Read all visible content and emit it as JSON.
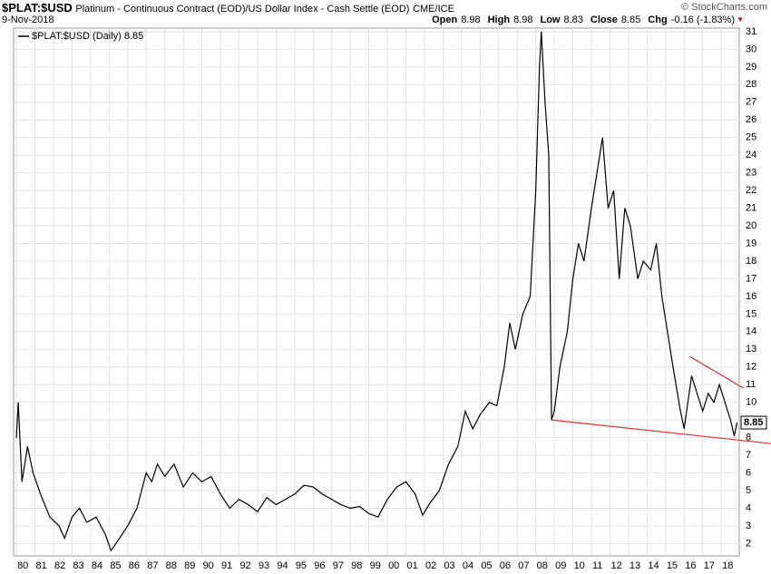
{
  "chart_data": {
    "type": "line",
    "title": "$PLAT:$USD",
    "subtitle": "Platinum - Continuous Contract (EOD)/US Dollar Index - Cash Settle (EOD)",
    "exchange": "CME/ICE",
    "date": "9-Nov-2018",
    "source": "© StockCharts.com",
    "quote": [
      {
        "label": "Open",
        "value": 8.98
      },
      {
        "label": "High",
        "value": 8.98
      },
      {
        "label": "Low",
        "value": 8.83
      },
      {
        "label": "Close",
        "value": 8.85
      },
      {
        "label": "Chg",
        "value": "-0.16 (-1.83%)"
      }
    ],
    "xlim": [
      1979.85,
      2018.97
    ],
    "ylim": [
      1.3,
      31.1
    ],
    "grid": true,
    "xticks": [
      {
        "value": 1980,
        "label": "80"
      },
      {
        "value": 1981,
        "label": "81"
      },
      {
        "value": 1982,
        "label": "82"
      },
      {
        "value": 1983,
        "label": "83"
      },
      {
        "value": 1984,
        "label": "84"
      },
      {
        "value": 1985,
        "label": "85"
      },
      {
        "value": 1986,
        "label": "86"
      },
      {
        "value": 1987,
        "label": "87"
      },
      {
        "value": 1988,
        "label": "88"
      },
      {
        "value": 1989,
        "label": "89"
      },
      {
        "value": 1990,
        "label": "90"
      },
      {
        "value": 1991,
        "label": "91"
      },
      {
        "value": 1992,
        "label": "92"
      },
      {
        "value": 1993,
        "label": "93"
      },
      {
        "value": 1994,
        "label": "94"
      },
      {
        "value": 1995,
        "label": "95"
      },
      {
        "value": 1996,
        "label": "96"
      },
      {
        "value": 1997,
        "label": "97"
      },
      {
        "value": 1998,
        "label": "98"
      },
      {
        "value": 1999,
        "label": "99"
      },
      {
        "value": 2000,
        "label": "00"
      },
      {
        "value": 2001,
        "label": "01"
      },
      {
        "value": 2002,
        "label": "02"
      },
      {
        "value": 2003,
        "label": "03"
      },
      {
        "value": 2004,
        "label": "04"
      },
      {
        "value": 2005,
        "label": "05"
      },
      {
        "value": 2006,
        "label": "06"
      },
      {
        "value": 2007,
        "label": "07"
      },
      {
        "value": 2008,
        "label": "08"
      },
      {
        "value": 2009,
        "label": "09"
      },
      {
        "value": 2010,
        "label": "10"
      },
      {
        "value": 2011,
        "label": "11"
      },
      {
        "value": 2012,
        "label": "12"
      },
      {
        "value": 2013,
        "label": "13"
      },
      {
        "value": 2014,
        "label": "14"
      },
      {
        "value": 2015,
        "label": "15"
      },
      {
        "value": 2016,
        "label": "16"
      },
      {
        "value": 2017,
        "label": "17"
      },
      {
        "value": 2018,
        "label": "18"
      }
    ],
    "yticks": [
      2,
      3,
      4,
      5,
      6,
      7,
      8,
      9,
      10,
      11,
      12,
      13,
      14,
      15,
      16,
      17,
      18,
      19,
      20,
      21,
      22,
      23,
      24,
      25,
      26,
      27,
      28,
      29,
      30,
      31
    ],
    "series": [
      {
        "name": "$PLAT:$USD (Daily) 8.85",
        "color": "#000000",
        "x": [
          1980.0,
          1980.1,
          1980.3,
          1980.6,
          1980.9,
          1981.3,
          1981.8,
          1982.3,
          1982.6,
          1983.0,
          1983.4,
          1983.8,
          1984.3,
          1984.8,
          1985.1,
          1985.5,
          1986.0,
          1986.5,
          1987.0,
          1987.3,
          1987.6,
          1988.0,
          1988.5,
          1989.0,
          1989.5,
          1990.0,
          1990.5,
          1991.0,
          1991.5,
          1992.0,
          1992.5,
          1993.0,
          1993.5,
          1994.0,
          1994.5,
          1995.0,
          1995.5,
          1996.0,
          1996.5,
          1997.0,
          1997.5,
          1998.0,
          1998.5,
          1999.0,
          1999.5,
          2000.0,
          2000.5,
          2001.0,
          2001.5,
          2001.9,
          2002.3,
          2002.8,
          2003.3,
          2003.8,
          2004.2,
          2004.6,
          2005.0,
          2005.5,
          2005.9,
          2006.3,
          2006.6,
          2006.9,
          2007.3,
          2007.7,
          2008.0,
          2008.2,
          2008.3,
          2008.5,
          2008.7,
          2008.85,
          2009.0,
          2009.3,
          2009.7,
          2010.0,
          2010.3,
          2010.6,
          2011.0,
          2011.3,
          2011.6,
          2011.9,
          2012.2,
          2012.5,
          2012.8,
          2013.1,
          2013.5,
          2013.8,
          2014.2,
          2014.5,
          2014.8,
          2015.1,
          2015.4,
          2015.8,
          2016.0,
          2016.4,
          2016.7,
          2017.0,
          2017.3,
          2017.6,
          2017.9,
          2018.2,
          2018.5,
          2018.7,
          2018.85
        ],
        "values": [
          8,
          10,
          5.5,
          7.5,
          6,
          4.8,
          3.5,
          3,
          2.3,
          3.5,
          4,
          3.2,
          3.5,
          2.5,
          1.6,
          2.2,
          3,
          4,
          6,
          5.5,
          6.5,
          5.8,
          6.5,
          5.2,
          6,
          5.5,
          5.8,
          4.8,
          4,
          4.5,
          4.2,
          3.8,
          4.6,
          4.2,
          4.5,
          4.8,
          5.3,
          5.2,
          4.8,
          4.5,
          4.2,
          4,
          4.1,
          3.7,
          3.5,
          4.5,
          5.2,
          5.5,
          4.8,
          3.6,
          4.3,
          5,
          6.5,
          7.5,
          9.5,
          8.5,
          9.3,
          10,
          9.8,
          12,
          14.5,
          13,
          15,
          16,
          22,
          29,
          31,
          27,
          24,
          9,
          9.5,
          12,
          14,
          17,
          19,
          18,
          21,
          23,
          25,
          21,
          22,
          17,
          21,
          20,
          17,
          18,
          17.5,
          19,
          16,
          14,
          12,
          9.5,
          8.5,
          11.5,
          10.5,
          9.5,
          10.5,
          10,
          11,
          10,
          9,
          8.1,
          8.85
        ]
      }
    ],
    "trendlines": [
      {
        "color": "#e03030",
        "x": [
          2008.85,
          2020.7
        ],
        "values": [
          9.0,
          7.66
        ]
      },
      {
        "color": "#e03030",
        "x": [
          2016.3,
          2019.2
        ],
        "values": [
          12.6,
          10.8
        ]
      }
    ]
  }
}
